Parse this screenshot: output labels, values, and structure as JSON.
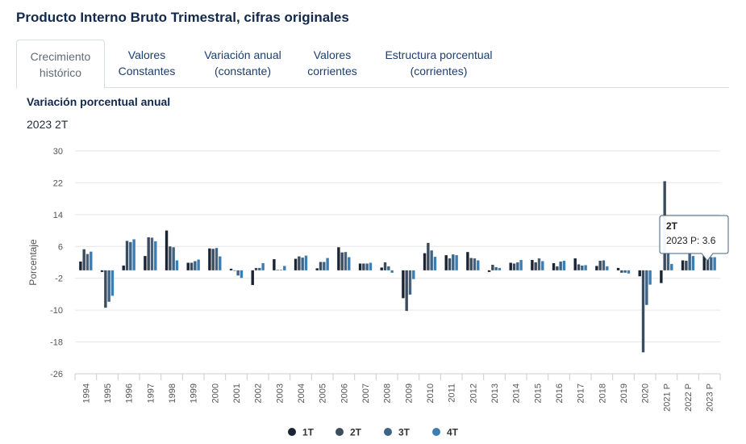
{
  "header": {
    "title": "Producto Interno Bruto Trimestral, cifras originales"
  },
  "tabs": [
    {
      "label": "Crecimiento\nhistórico",
      "active": true
    },
    {
      "label": "Valores\nConstantes",
      "active": false
    },
    {
      "label": "Variación anual\n(constante)",
      "active": false
    },
    {
      "label": "Valores\ncorrientes",
      "active": false
    },
    {
      "label": "Estructura porcentual\n(corrientes)",
      "active": false
    }
  ],
  "chart_header": {
    "title": "Variación porcentual anual",
    "period": "2023 2T"
  },
  "tooltip": {
    "title": "2T",
    "text": "2023 P: 3.6"
  },
  "colors": {
    "1T": "#1a2433",
    "2T": "#3b4c5e",
    "3T": "#3e6485",
    "4T": "#3c7db4",
    "grid": "#e6e6e6"
  },
  "chart_data": {
    "type": "bar",
    "ylabel": "Porcentaje",
    "ylim": [
      -26,
      30
    ],
    "yticks": [
      30,
      22,
      14,
      6,
      -2,
      -10,
      -18,
      -26
    ],
    "categories": [
      "1994",
      "1995",
      "1996",
      "1997",
      "1998",
      "1999",
      "2000",
      "2001",
      "2002",
      "2003",
      "2004",
      "2005",
      "2006",
      "2007",
      "2008",
      "2009",
      "2010",
      "2011",
      "2012",
      "2013",
      "2014",
      "2015",
      "2016",
      "2017",
      "2018",
      "2019",
      "2020",
      "2021 P",
      "2022 P",
      "2023 P"
    ],
    "legend": {
      "position": "bottom-center"
    },
    "series": [
      {
        "name": "1T",
        "values": [
          2.2,
          -0.4,
          1.2,
          3.6,
          10.0,
          1.9,
          5.5,
          0.4,
          -3.7,
          2.8,
          2.9,
          0.5,
          5.8,
          1.7,
          0.7,
          -7.0,
          4.3,
          3.8,
          4.6,
          -0.4,
          1.9,
          2.6,
          1.8,
          3.0,
          1.1,
          0.6,
          -1.5,
          -3.2,
          2.5,
          3.6
        ]
      },
      {
        "name": "2T",
        "values": [
          5.3,
          -9.4,
          7.4,
          8.3,
          6.0,
          1.9,
          5.4,
          -0.1,
          0.6,
          0.1,
          3.5,
          2.1,
          4.5,
          1.7,
          2.0,
          -10.2,
          6.9,
          3.0,
          3.1,
          1.4,
          1.7,
          2.0,
          1.0,
          1.5,
          2.4,
          -0.6,
          -20.6,
          22.4,
          2.4,
          3.6
        ]
      },
      {
        "name": "3T",
        "values": [
          4.1,
          -7.9,
          7.1,
          8.2,
          5.8,
          2.3,
          5.6,
          -1.3,
          0.6,
          0.1,
          3.2,
          2.1,
          4.6,
          1.7,
          1.0,
          -6.1,
          5.0,
          4.0,
          3.0,
          0.8,
          2.0,
          3.0,
          2.2,
          1.2,
          2.5,
          -0.6,
          -8.7,
          4.4,
          4.3,
          3.3
        ]
      },
      {
        "name": "4T",
        "values": [
          4.7,
          -6.4,
          7.8,
          7.3,
          2.5,
          2.7,
          3.5,
          -1.9,
          1.8,
          1.1,
          3.7,
          3.1,
          3.3,
          1.9,
          -0.6,
          -2.2,
          3.4,
          3.8,
          2.5,
          0.6,
          2.6,
          2.3,
          2.4,
          1.3,
          1.0,
          -0.8,
          -3.6,
          1.6,
          3.6,
          3.3
        ]
      }
    ]
  }
}
